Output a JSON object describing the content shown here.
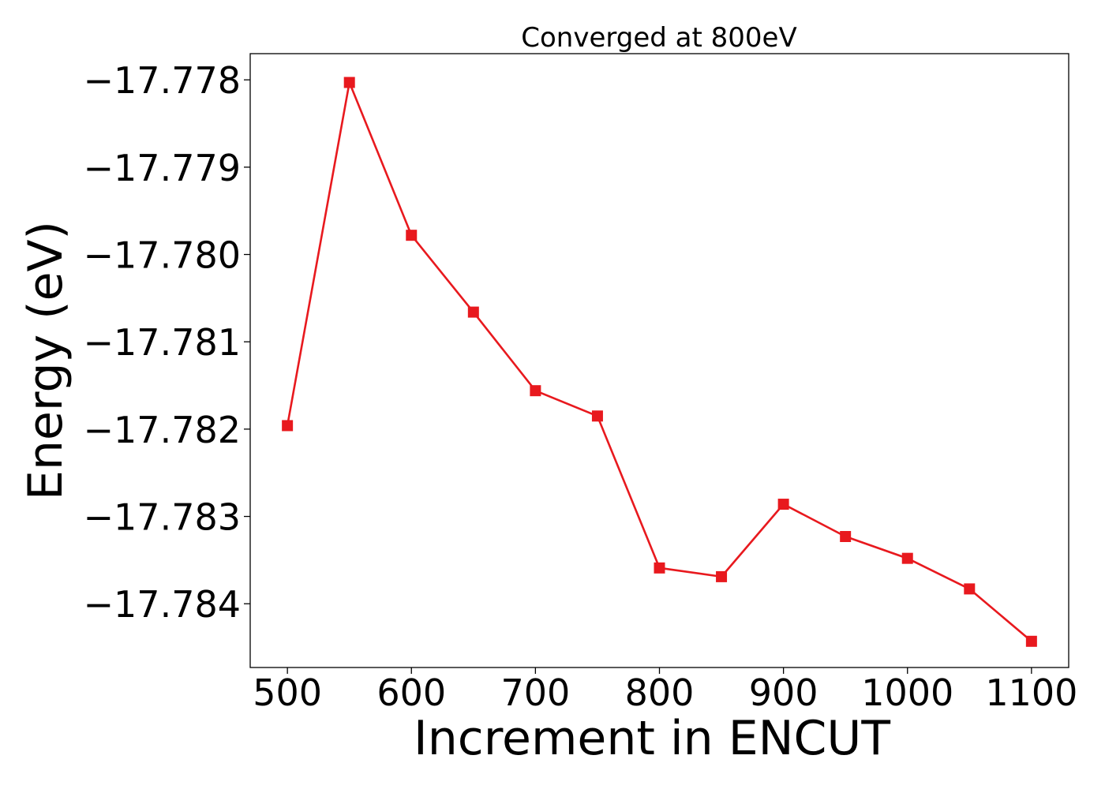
{
  "chart_data": {
    "type": "line",
    "title": "Converged at 800eV",
    "xlabel": "Increment in ENCUT",
    "ylabel": "Energy (eV)",
    "x": [
      500,
      550,
      600,
      650,
      700,
      750,
      800,
      850,
      900,
      950,
      1000,
      1050,
      1100
    ],
    "series": [
      {
        "values": [
          -17.78196,
          -17.77803,
          -17.77978,
          -17.78066,
          -17.78156,
          -17.78185,
          -17.78359,
          -17.78369,
          -17.78286,
          -17.78323,
          -17.78348,
          -17.78383,
          -17.78443
        ],
        "color": "#e8191e",
        "marker": "square"
      }
    ],
    "xticks": [
      500,
      600,
      700,
      800,
      900,
      1000,
      1100
    ],
    "xtick_labels": [
      "500",
      "600",
      "700",
      "800",
      "900",
      "1000",
      "1100"
    ],
    "yticks": [
      -17.778,
      -17.779,
      -17.78,
      -17.781,
      -17.782,
      -17.783,
      -17.784
    ],
    "ytick_labels": [
      "−17.778",
      "−17.779",
      "−17.780",
      "−17.781",
      "−17.782",
      "−17.783",
      "−17.784"
    ],
    "xlim": [
      470,
      1130
    ],
    "ylim": [
      -17.78473,
      -17.7777
    ],
    "grid": false,
    "legend": "none"
  }
}
